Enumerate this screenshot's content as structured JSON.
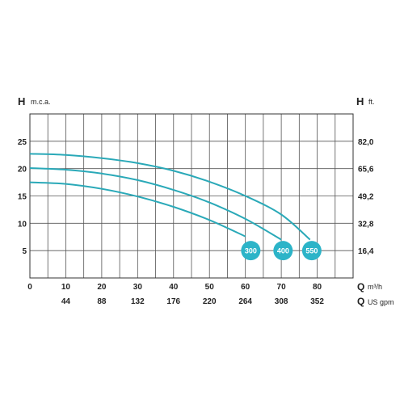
{
  "chart_data": {
    "type": "line",
    "y_left": {
      "symbol": "H",
      "unit": "m.c.a.",
      "ticks": [
        5,
        10,
        15,
        20,
        25
      ],
      "range": [
        0,
        30
      ]
    },
    "y_right": {
      "symbol": "H",
      "unit": "ft.",
      "ticks": [
        "16,4",
        "32,8",
        "49,2",
        "65,6",
        "82,0"
      ]
    },
    "x_primary": {
      "symbol": "Q",
      "unit": "m³/h",
      "ticks": [
        0,
        10,
        20,
        30,
        40,
        50,
        60,
        70,
        80
      ],
      "range": [
        0,
        90
      ]
    },
    "x_secondary": {
      "symbol": "Q",
      "unit": "US gpm",
      "ticks": [
        "44",
        "88",
        "132",
        "176",
        "220",
        "264",
        "308",
        "352"
      ]
    },
    "grid": true,
    "colors": {
      "curve": "#2aa9b8",
      "badge": "#2cb4c8"
    },
    "series": [
      {
        "name": "300",
        "points": [
          [
            0,
            17.5
          ],
          [
            10,
            17.2
          ],
          [
            20,
            16.3
          ],
          [
            30,
            14.9
          ],
          [
            40,
            13.0
          ],
          [
            50,
            10.6
          ],
          [
            60,
            7.6
          ]
        ]
      },
      {
        "name": "400",
        "points": [
          [
            0,
            20.1
          ],
          [
            10,
            19.8
          ],
          [
            20,
            19.1
          ],
          [
            30,
            17.9
          ],
          [
            40,
            16.1
          ],
          [
            50,
            13.8
          ],
          [
            60,
            10.8
          ],
          [
            70,
            7.0
          ]
        ]
      },
      {
        "name": "550",
        "points": [
          [
            0,
            22.7
          ],
          [
            10,
            22.5
          ],
          [
            20,
            21.9
          ],
          [
            30,
            21.0
          ],
          [
            40,
            19.6
          ],
          [
            50,
            17.6
          ],
          [
            60,
            15.0
          ],
          [
            70,
            11.6
          ],
          [
            78,
            7.0
          ]
        ]
      }
    ],
    "badges": [
      {
        "label": "300",
        "x": 61.5,
        "y": 5
      },
      {
        "label": "400",
        "x": 70.5,
        "y": 5
      },
      {
        "label": "550",
        "x": 78.5,
        "y": 5
      }
    ]
  }
}
